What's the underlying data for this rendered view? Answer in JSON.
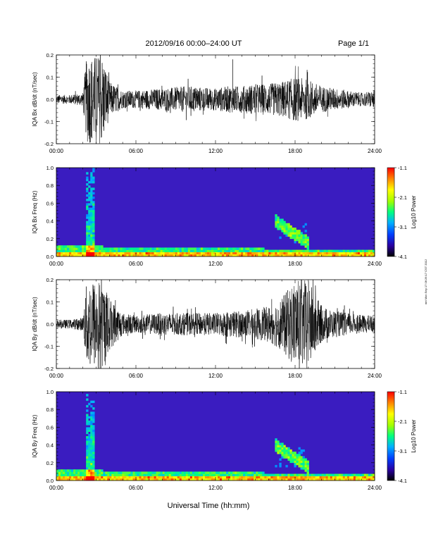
{
  "header": {
    "title": "2012/09/16  00:00–24:00 UT",
    "page": "Page 1/1"
  },
  "footer": {
    "xlabel": "Universal Time (hh:mm)"
  },
  "side_stamp": "mrt Mon Sep 17 06:26:17 CST 2012",
  "colors": {
    "frame": "#000000",
    "trace": "#000000",
    "spec_background": "#3a1cc0",
    "spec_colormap": [
      "#000000",
      "#2a00a0",
      "#0040ff",
      "#00b0ff",
      "#00ff80",
      "#a0ff00",
      "#ffff00",
      "#ff8000",
      "#ff0000"
    ]
  },
  "chart_data": [
    {
      "type": "line",
      "name": "bx-waveform",
      "ylabel": "IQA Bx dB/dt (nT/sec)",
      "xlim": [
        0,
        24
      ],
      "ylim": [
        -0.2,
        0.2
      ],
      "xticks": [
        "00:00",
        "06:00",
        "12:00",
        "18:00",
        "24:00"
      ],
      "yticks": [
        "-0.2",
        "-0.1",
        "0.0",
        "0.1",
        "0.2"
      ],
      "amplitude_profile": {
        "x_hours": [
          0,
          1,
          2,
          2.3,
          2.6,
          3.0,
          3.5,
          4.0,
          5,
          6,
          8,
          10,
          12,
          13,
          14,
          15,
          16,
          17,
          18,
          19,
          20,
          21,
          22,
          23,
          24
        ],
        "half_range": [
          0.02,
          0.02,
          0.03,
          0.2,
          0.2,
          0.2,
          0.2,
          0.08,
          0.04,
          0.04,
          0.05,
          0.06,
          0.05,
          0.06,
          0.06,
          0.07,
          0.07,
          0.08,
          0.1,
          0.09,
          0.06,
          0.05,
          0.04,
          0.03,
          0.04
        ]
      },
      "spikes": [
        {
          "x": 13.3,
          "y": 0.18
        }
      ]
    },
    {
      "type": "heatmap",
      "name": "bx-spectrogram",
      "ylabel": "IQA Bx Freq (Hz)",
      "xlim": [
        0,
        24
      ],
      "ylim": [
        0,
        1.0
      ],
      "xticks": [
        "00:00",
        "06:00",
        "12:00",
        "18:00",
        "24:00"
      ],
      "yticks": [
        "0.0",
        "0.2",
        "0.4",
        "0.6",
        "0.8",
        "1.0"
      ],
      "colorbar": {
        "label": "Log10 Power",
        "ticks": [
          "-1.1",
          "-2.1",
          "-3.1",
          "-4.1"
        ],
        "range": [
          -4.1,
          -1.1
        ]
      },
      "features": [
        {
          "x_hours": [
            2.2,
            2.8
          ],
          "freq_max": 1.0,
          "intensity": "high"
        },
        {
          "x_hours": [
            16.5,
            19.0
          ],
          "freq_range": [
            0.15,
            0.4
          ],
          "intensity": "medium"
        },
        {
          "x_hours": [
            0,
            24
          ],
          "freq_range": [
            0,
            0.05
          ],
          "intensity": "high"
        }
      ]
    },
    {
      "type": "line",
      "name": "by-waveform",
      "ylabel": "IQA By dB/dt (nT/sec)",
      "xlim": [
        0,
        24
      ],
      "ylim": [
        -0.2,
        0.2
      ],
      "xticks": [
        "00:00",
        "06:00",
        "12:00",
        "18:00",
        "24:00"
      ],
      "yticks": [
        "-0.2",
        "-0.1",
        "0.0",
        "0.1",
        "0.2"
      ],
      "amplitude_profile": {
        "x_hours": [
          0,
          1,
          2,
          2.3,
          2.6,
          3.0,
          3.5,
          4.0,
          5,
          6,
          8,
          10,
          12,
          13,
          14,
          15,
          16,
          17,
          18,
          19,
          20,
          21,
          22,
          23,
          24
        ],
        "half_range": [
          0.02,
          0.02,
          0.03,
          0.2,
          0.2,
          0.2,
          0.2,
          0.12,
          0.05,
          0.04,
          0.05,
          0.05,
          0.05,
          0.06,
          0.06,
          0.07,
          0.08,
          0.12,
          0.2,
          0.2,
          0.08,
          0.06,
          0.05,
          0.04,
          0.04
        ]
      },
      "spikes": []
    },
    {
      "type": "heatmap",
      "name": "by-spectrogram",
      "ylabel": "IQA By Freq (Hz)",
      "xlim": [
        0,
        24
      ],
      "ylim": [
        0,
        1.0
      ],
      "xticks": [
        "00:00",
        "06:00",
        "12:00",
        "18:00",
        "24:00"
      ],
      "yticks": [
        "0.0",
        "0.2",
        "0.4",
        "0.6",
        "0.8",
        "1.0"
      ],
      "colorbar": {
        "label": "Log10 Power",
        "ticks": [
          "-1.1",
          "-2.1",
          "-3.1",
          "-4.1"
        ],
        "range": [
          -4.1,
          -1.1
        ]
      },
      "features": [
        {
          "x_hours": [
            2.2,
            2.8
          ],
          "freq_max": 1.0,
          "intensity": "high"
        },
        {
          "x_hours": [
            16.5,
            19.0
          ],
          "freq_range": [
            0.15,
            0.4
          ],
          "intensity": "medium"
        },
        {
          "x_hours": [
            0,
            24
          ],
          "freq_range": [
            0,
            0.05
          ],
          "intensity": "high"
        }
      ]
    }
  ]
}
